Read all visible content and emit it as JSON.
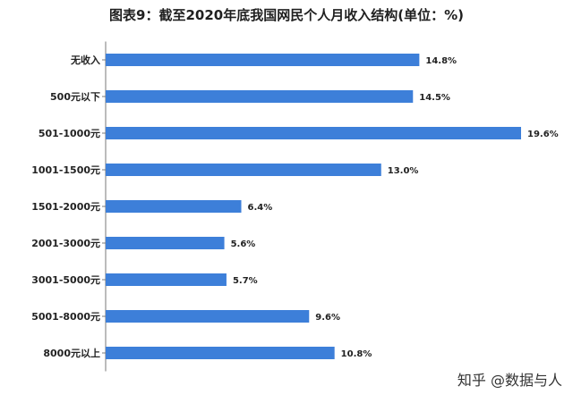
{
  "chart_data": {
    "type": "bar",
    "orientation": "horizontal",
    "title": "图表9：截至2020年底我国网民个人月收入结构(单位：%)",
    "categories": [
      "无收入",
      "500元以下",
      "501-1000元",
      "1001-1500元",
      "1501-2000元",
      "2001-3000元",
      "3001-5000元",
      "5001-8000元",
      "8000元以上"
    ],
    "values": [
      14.8,
      14.5,
      19.6,
      13.0,
      6.4,
      5.6,
      5.7,
      9.6,
      10.8
    ],
    "value_labels": [
      "14.8%",
      "14.5%",
      "19.6%",
      "13.0%",
      "6.4%",
      "5.6%",
      "5.7%",
      "9.6%",
      "10.8%"
    ],
    "xlim": [
      0,
      20
    ],
    "grid": false,
    "legend": "none",
    "bar_color": "#3d7fd9"
  },
  "footer": {
    "attribution": "知乎 @数据与人"
  }
}
